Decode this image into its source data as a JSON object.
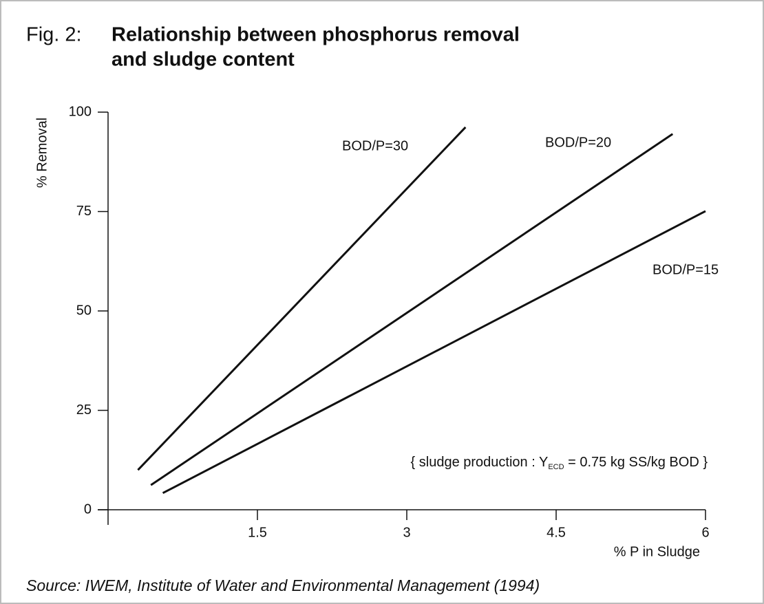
{
  "chart_data": {
    "type": "line",
    "figure_label": "Fig. 2:",
    "title": [
      "Relationship between phosphorus removal",
      "and sludge content"
    ],
    "x_label": "% P in Sludge",
    "y_label": "% Removal",
    "annotation": [
      "{ sludge production : Y",
      "ECD",
      " = 0.75 kg SS/kg BOD }"
    ],
    "source": "Source: IWEM, Institute of Water and Environmental Management (1994)",
    "xlim": [
      0,
      6
    ],
    "xticks": [
      1.5,
      3,
      4.5,
      6
    ],
    "ylim": [
      0,
      100
    ],
    "yticks": [
      0,
      25,
      50,
      75,
      100
    ],
    "series": [
      {
        "name": "BOD/P=30",
        "color": "#111111",
        "x": [
          0.3,
          3.59
        ],
        "values": [
          10.0,
          96.2
        ]
      },
      {
        "name": "BOD/P=20",
        "color": "#111111",
        "x": [
          0.43,
          5.67
        ],
        "values": [
          6.2,
          94.5
        ]
      },
      {
        "name": "BOD/P=15",
        "color": "#111111",
        "x": [
          0.55,
          6.0
        ],
        "values": [
          4.2,
          75.1
        ]
      }
    ]
  }
}
